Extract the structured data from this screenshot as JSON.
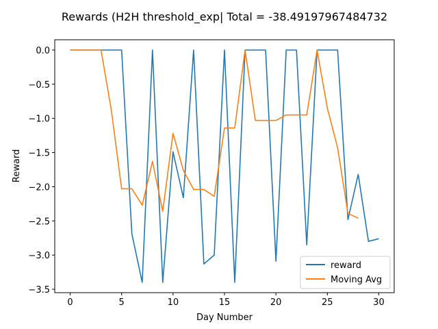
{
  "chart_data": {
    "type": "line",
    "title": "Rewards (H2H threshold_exp| Total = -38.49197967484732",
    "xlabel": "Day Number",
    "ylabel": "Reward",
    "xlim": [
      -1.5,
      31.5
    ],
    "ylim": [
      -3.55,
      0.15
    ],
    "xticks": [
      0,
      5,
      10,
      15,
      20,
      25,
      30
    ],
    "yticks": [
      0.0,
      -0.5,
      -1.0,
      -1.5,
      -2.0,
      -2.5,
      -3.0,
      -3.5
    ],
    "ytick_labels": [
      "0.0",
      "−0.5",
      "−1.0",
      "−1.5",
      "−2.0",
      "−2.5",
      "−3.0",
      "−3.5"
    ],
    "legend_position": "lower-right",
    "series": [
      {
        "name": "reward",
        "color": "#1f77b4",
        "x": [
          0,
          1,
          2,
          3,
          4,
          5,
          6,
          7,
          8,
          9,
          10,
          11,
          12,
          13,
          14,
          15,
          16,
          17,
          18,
          19,
          20,
          21,
          22,
          23,
          24,
          25,
          26,
          27,
          28,
          29,
          30
        ],
        "values": [
          0,
          0,
          0,
          0,
          0,
          0,
          -2.69,
          -3.4,
          0,
          -3.4,
          -1.49,
          -2.16,
          0,
          -3.13,
          -3.0,
          0,
          -3.4,
          0,
          0,
          0,
          -3.09,
          0,
          0,
          -2.85,
          0,
          0,
          0,
          -2.48,
          -1.82,
          -2.8,
          -2.76
        ]
      },
      {
        "name": "Moving Avg",
        "color": "#ff7f0e",
        "x": [
          0,
          1,
          2,
          3,
          4,
          5,
          6,
          7,
          8,
          9,
          10,
          11,
          12,
          13,
          14,
          15,
          16,
          17,
          18,
          19,
          20,
          21,
          22,
          23,
          24,
          25,
          26,
          27,
          28
        ],
        "values": [
          0,
          0,
          0,
          0,
          -0.88,
          -2.03,
          -2.03,
          -2.27,
          -1.63,
          -2.36,
          -1.22,
          -1.76,
          -2.04,
          -2.04,
          -2.14,
          -1.14,
          -1.14,
          0,
          -1.03,
          -1.03,
          -1.03,
          -0.95,
          -0.95,
          -0.95,
          0,
          -0.85,
          -1.43,
          -2.39,
          -2.46
        ]
      }
    ]
  }
}
